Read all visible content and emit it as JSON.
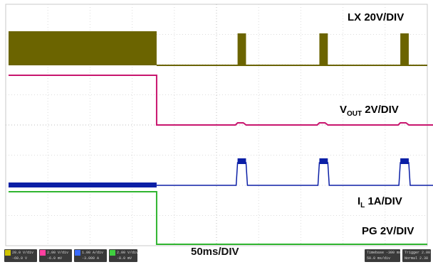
{
  "chart_data": {
    "type": "line",
    "title": "",
    "timebase": "50ms/DIV",
    "x_unit": "ms",
    "xlim": [
      0,
      500
    ],
    "divisions": {
      "x": 10,
      "y": 8
    },
    "grid": true,
    "series": [
      {
        "name": "LX 20V/DIV",
        "name_main": "LX 20V/DIV",
        "name_sub": "",
        "name_suffix": "",
        "color": "#6b6400",
        "label_color": "#6b6400",
        "baseline_div": 3.8,
        "high_div": 3.8,
        "description_values": {
          "burst_end_ms": 179,
          "pulse_times_ms": [
            275,
            372,
            468,
            565
          ],
          "pulse_width_ms": 10
        }
      },
      {
        "name": "VOUT 2V/DIV",
        "name_main": "V",
        "name_sub": "OUT",
        "name_suffix": " 2V/DIV",
        "color": "#c8156e",
        "label_color": "#c8156e",
        "baseline_div": 1.05,
        "high_div": 3.5,
        "description_values": {
          "drop_ms": 179,
          "ripple_times_ms": [
            275,
            372,
            468,
            565
          ]
        }
      },
      {
        "name": "IL 1A/DIV",
        "name_main": "I",
        "name_sub": "L",
        "name_suffix": " 1A/DIV",
        "color": "#0b1fa6",
        "label_color": "#1a1ad6",
        "baseline_div": 1.0,
        "peak_div": 1.7,
        "description_values": {
          "pulse_times_ms": [
            275,
            372,
            468,
            565
          ],
          "pulse_width_ms": 10
        }
      },
      {
        "name": "PG 2V/DIV",
        "name_main": "PG 2V/DIV",
        "name_sub": "",
        "name_suffix": "",
        "color": "#2fb52f",
        "label_color": "#2fb52f",
        "baseline_div": 0.0,
        "high_div": 3.1,
        "description_values": {
          "drop_ms": 179
        }
      }
    ]
  },
  "status_bar": {
    "channels": [
      {
        "color": "#d0c400",
        "line1": "20.0 V/div",
        "line2": "-60.0 V"
      },
      {
        "color": "#ff40a0",
        "line1": "2.00 V/div",
        "line2": "-6.0 mV"
      },
      {
        "color": "#3a6bff",
        "line1": "1.00 A/div",
        "line2": "-3.000 A"
      },
      {
        "color": "#40d040",
        "line1": "2.00 V/div",
        "line2": "-8.0 mV"
      }
    ],
    "timebase_panel": {
      "line1": "Timebase  -300 ms",
      "line2": "50.0 ms/div"
    },
    "trigger_panel": {
      "line1": "Trigger  2.00",
      "line2": "Normal  2.38"
    }
  }
}
